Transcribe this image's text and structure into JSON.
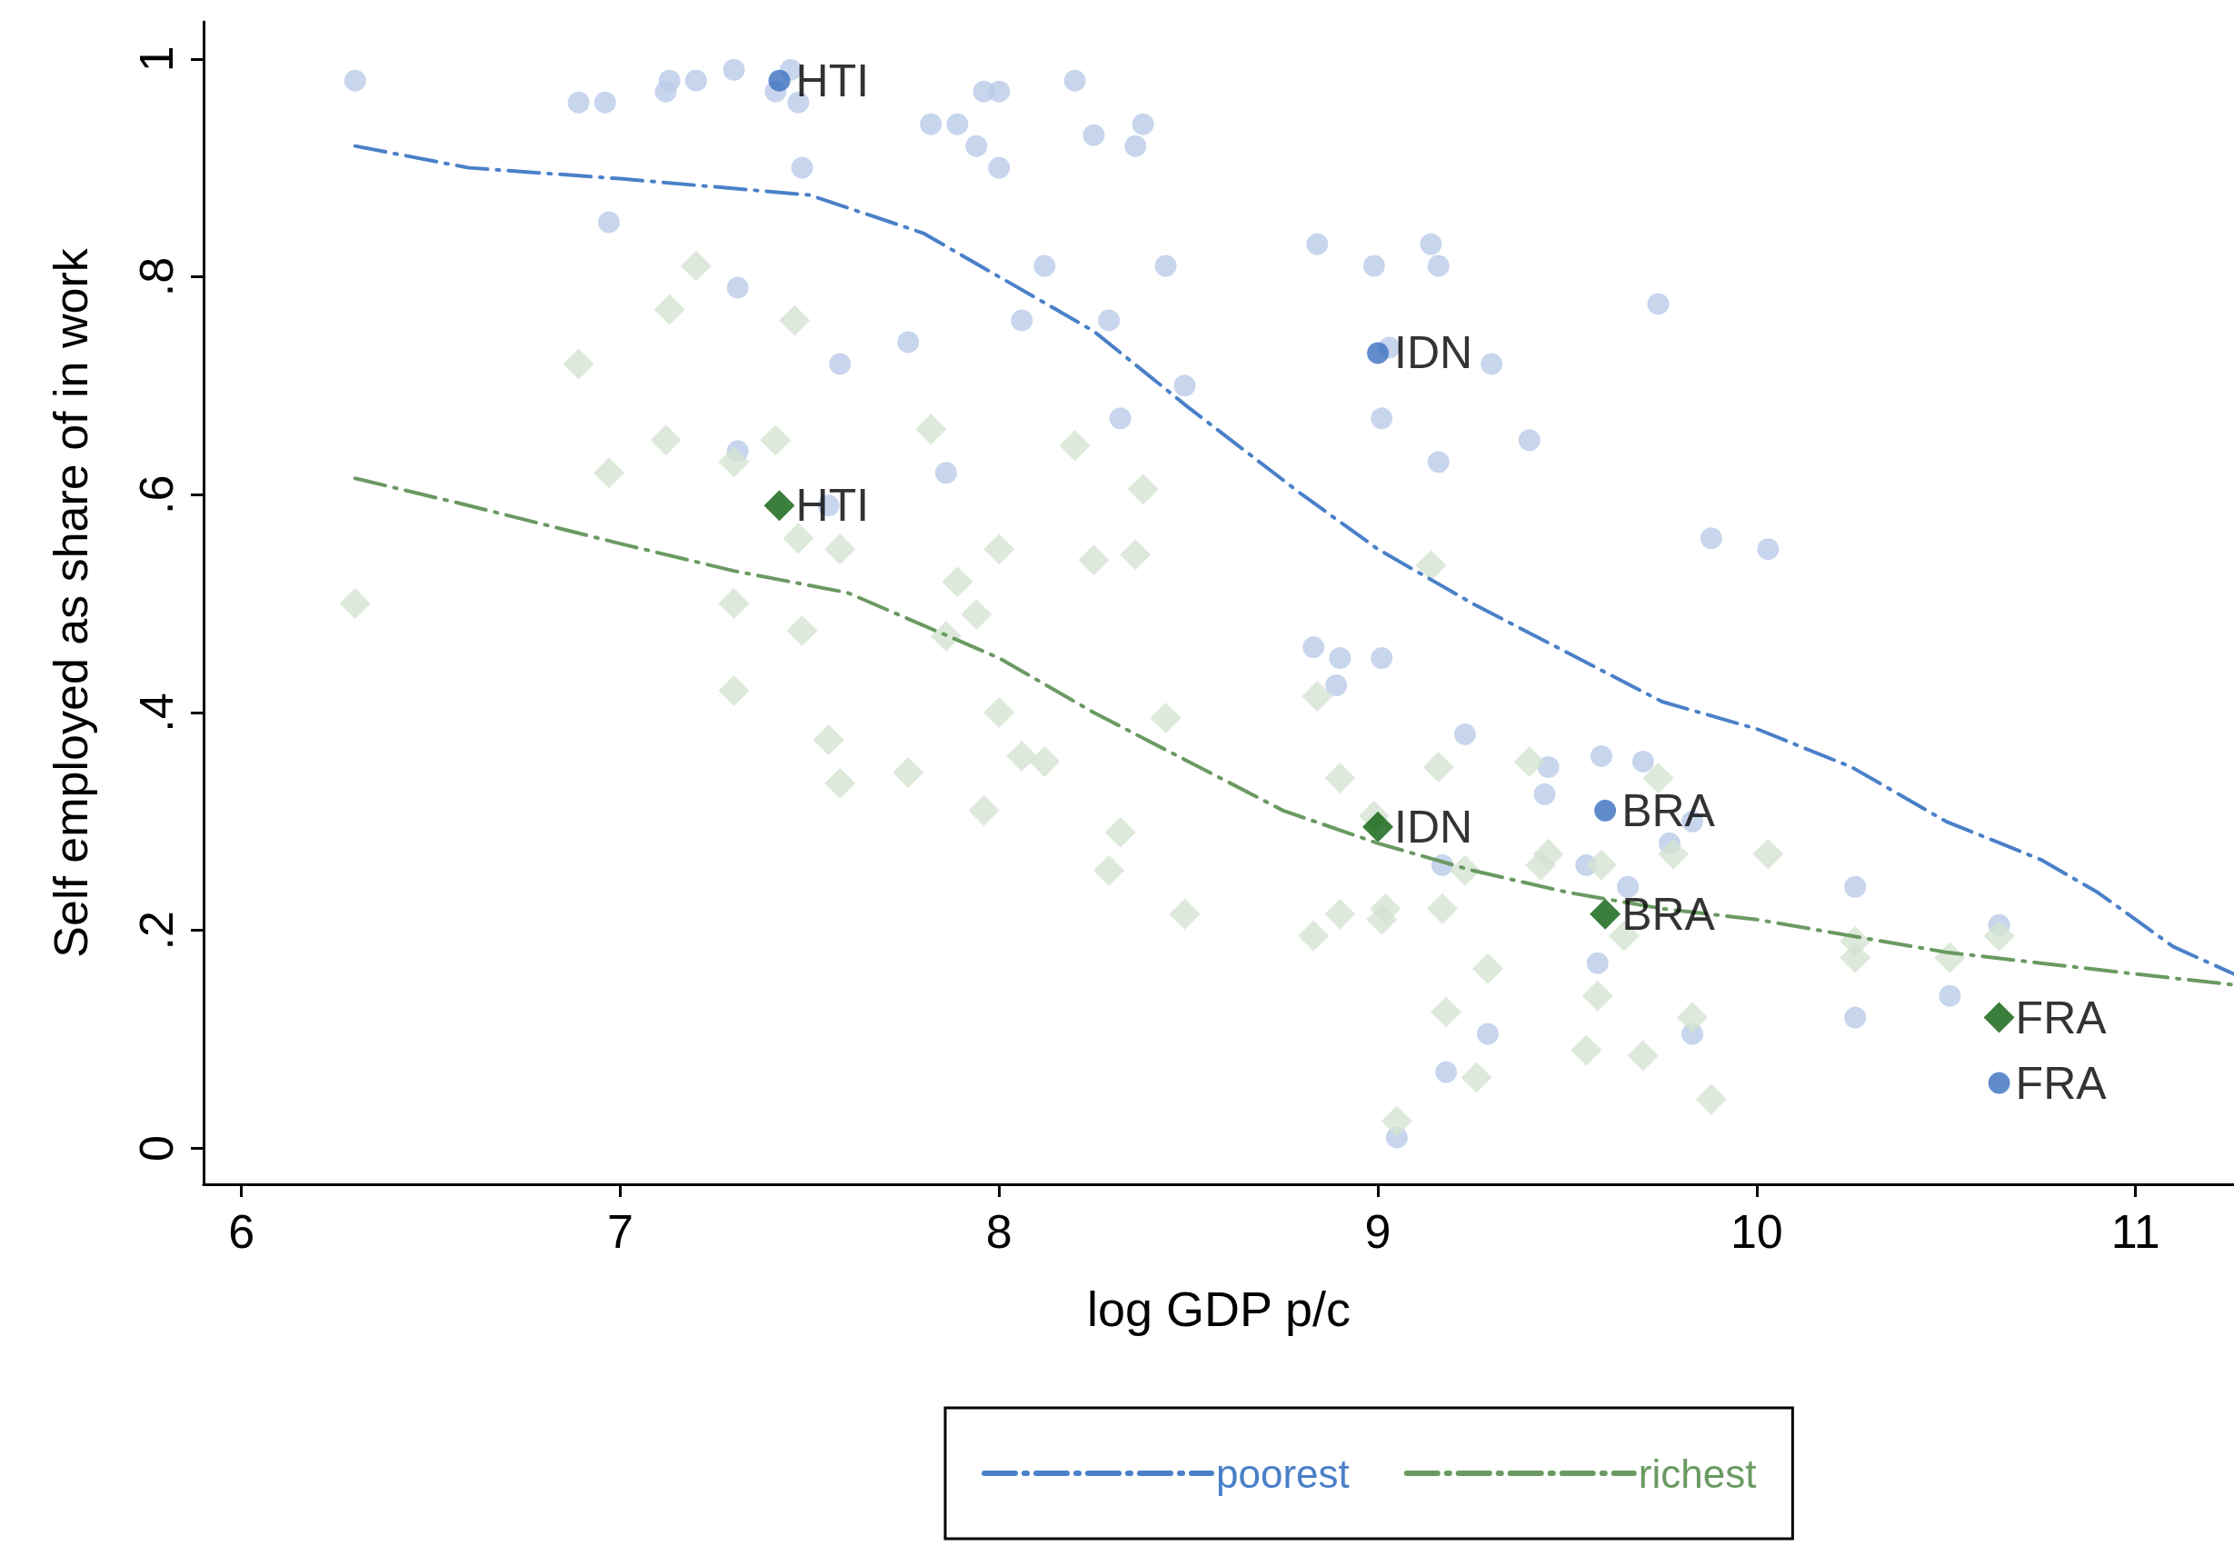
{
  "chart_data": {
    "type": "scatter",
    "xlabel": "log GDP p/c",
    "ylabel": "Self employed as share of in work",
    "xlim": [
      5.9,
      11.26
    ],
    "xticks": [
      6,
      7,
      8,
      9,
      10,
      11
    ],
    "ylim": [
      -0.033,
      1.034
    ],
    "yticks": [
      0,
      {
        "value": 0.2,
        "label": ".2"
      },
      {
        "value": 0.4,
        "label": ".4"
      },
      {
        "value": 0.6,
        "label": ".6"
      },
      {
        "value": 0.8,
        "label": ".8"
      },
      1
    ],
    "grid": false,
    "legend": "bottom",
    "line_style": "dashed",
    "series": [
      {
        "marker": "circle",
        "color": "#b9cbe9",
        "x": [
          6.3,
          6.89,
          6.96,
          7.12,
          7.13,
          7.2,
          7.3,
          7.41,
          7.45,
          7.47,
          7.48,
          6.97,
          7.31,
          7.82,
          7.89,
          7.94,
          7.96,
          8.0,
          8.0,
          8.2,
          8.25,
          8.36,
          8.38,
          8.12,
          7.58,
          7.76,
          8.06,
          8.29,
          8.44,
          8.32,
          8.49,
          7.31,
          7.86,
          7.55,
          8.84,
          8.99,
          9.14,
          9.16,
          9.74,
          9.01,
          9.16,
          9.4,
          9.3,
          9.03,
          9.88,
          10.03,
          8.83,
          8.9,
          8.89,
          9.01,
          9.23,
          9.59,
          9.7,
          9.45,
          9.44,
          9.83,
          9.77,
          9.55,
          9.66,
          9.17,
          10.26,
          10.64,
          9.58,
          10.51,
          10.26,
          9.29,
          9.83,
          9.18,
          9.05
        ],
        "values": [
          0.98,
          0.96,
          0.96,
          0.97,
          0.98,
          0.98,
          0.99,
          0.97,
          0.99,
          0.96,
          0.9,
          0.85,
          0.79,
          0.94,
          0.94,
          0.92,
          0.97,
          0.97,
          0.9,
          0.98,
          0.93,
          0.92,
          0.94,
          0.81,
          0.72,
          0.74,
          0.76,
          0.76,
          0.81,
          0.67,
          0.7,
          0.64,
          0.62,
          0.59,
          0.83,
          0.81,
          0.83,
          0.81,
          0.775,
          0.67,
          0.63,
          0.65,
          0.72,
          0.735,
          0.56,
          0.55,
          0.46,
          0.45,
          0.425,
          0.45,
          0.38,
          0.36,
          0.355,
          0.35,
          0.325,
          0.3,
          0.28,
          0.26,
          0.24,
          0.26,
          0.24,
          0.205,
          0.17,
          0.14,
          0.12,
          0.105,
          0.105,
          0.07,
          0.01
        ]
      },
      {
        "marker": "diamond",
        "color": "#d4e3d1",
        "x": [
          6.3,
          6.89,
          6.97,
          7.13,
          7.2,
          7.12,
          7.3,
          7.41,
          7.46,
          7.3,
          7.3,
          7.48,
          7.47,
          7.58,
          7.55,
          7.58,
          7.82,
          7.76,
          7.86,
          7.89,
          7.94,
          8.0,
          8.0,
          7.96,
          8.06,
          8.12,
          8.2,
          8.25,
          8.36,
          8.38,
          8.32,
          8.29,
          8.44,
          8.49,
          8.84,
          8.9,
          8.99,
          9.14,
          9.16,
          8.83,
          8.9,
          9.01,
          9.02,
          9.17,
          9.23,
          9.4,
          9.45,
          9.43,
          9.59,
          9.74,
          9.78,
          9.65,
          10.03,
          9.58,
          9.55,
          9.7,
          9.83,
          9.88,
          9.18,
          9.29,
          9.26,
          9.05,
          10.26,
          10.26,
          10.51,
          10.64
        ],
        "values": [
          0.5,
          0.72,
          0.62,
          0.77,
          0.81,
          0.65,
          0.63,
          0.65,
          0.76,
          0.5,
          0.42,
          0.475,
          0.56,
          0.55,
          0.375,
          0.335,
          0.66,
          0.345,
          0.47,
          0.52,
          0.49,
          0.55,
          0.4,
          0.31,
          0.36,
          0.355,
          0.645,
          0.54,
          0.545,
          0.605,
          0.29,
          0.255,
          0.395,
          0.215,
          0.415,
          0.34,
          0.305,
          0.535,
          0.35,
          0.195,
          0.215,
          0.21,
          0.22,
          0.22,
          0.255,
          0.355,
          0.27,
          0.26,
          0.26,
          0.34,
          0.27,
          0.195,
          0.27,
          0.14,
          0.09,
          0.085,
          0.12,
          0.045,
          0.125,
          0.165,
          0.065,
          0.025,
          0.19,
          0.175,
          0.175,
          0.195
        ]
      },
      {
        "type": "line",
        "name": "poorest",
        "marker": "none",
        "color": "#4a80c8",
        "x": [
          6.3,
          6.6,
          7.0,
          7.5,
          7.8,
          8.0,
          8.25,
          8.5,
          8.8,
          9.0,
          9.25,
          9.5,
          9.75,
          10.0,
          10.25,
          10.5,
          10.75,
          10.9,
          11.1,
          11.26
        ],
        "values": [
          0.92,
          0.9,
          0.89,
          0.875,
          0.84,
          0.8,
          0.75,
          0.68,
          0.6,
          0.55,
          0.5,
          0.455,
          0.41,
          0.385,
          0.35,
          0.3,
          0.265,
          0.235,
          0.185,
          0.16
        ]
      },
      {
        "type": "line",
        "name": "richest",
        "marker": "none",
        "color": "#6a9a62",
        "x": [
          6.3,
          6.6,
          7.0,
          7.3,
          7.6,
          7.8,
          8.0,
          8.25,
          8.5,
          8.75,
          9.0,
          9.25,
          9.5,
          9.75,
          10.0,
          10.25,
          10.5,
          10.75,
          11.0,
          11.26
        ],
        "values": [
          0.615,
          0.59,
          0.555,
          0.53,
          0.51,
          0.48,
          0.45,
          0.4,
          0.355,
          0.31,
          0.28,
          0.255,
          0.235,
          0.22,
          0.21,
          0.195,
          0.18,
          0.17,
          0.16,
          0.15
        ]
      },
      {
        "marker": "circle",
        "color": "#3a6fbf",
        "x": [
          7.42,
          9.0,
          9.6,
          10.64
        ],
        "values": [
          0.98,
          0.73,
          0.31,
          0.06
        ]
      },
      {
        "marker": "diamond",
        "color": "#0b5e0b",
        "x": [
          7.42,
          9.0,
          9.6,
          10.64
        ],
        "values": [
          0.59,
          0.295,
          0.215,
          0.12
        ]
      }
    ],
    "annotations": [
      {
        "text": "HTI",
        "x": 7.42,
        "y": 0.98
      },
      {
        "text": "IDN",
        "x": 9.0,
        "y": 0.73
      },
      {
        "text": "BRA",
        "x": 9.6,
        "y": 0.31
      },
      {
        "text": "FRA",
        "x": 10.64,
        "y": 0.06
      },
      {
        "text": "HTI",
        "x": 7.42,
        "y": 0.59
      },
      {
        "text": "IDN",
        "x": 9.0,
        "y": 0.295
      },
      {
        "text": "BRA",
        "x": 9.6,
        "y": 0.215
      },
      {
        "text": "FRA",
        "x": 10.64,
        "y": 0.12
      }
    ]
  }
}
